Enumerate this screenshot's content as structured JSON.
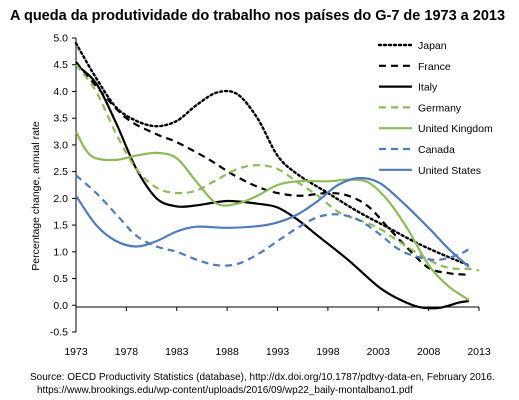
{
  "chart_data": {
    "type": "line",
    "title": "A queda da produtividade do trabalho nos países do G-7 de 1973 a 2013",
    "xlabel": "",
    "ylabel": "Percentage change, annual rate",
    "xlim": [
      1973,
      2013
    ],
    "ylim": [
      -0.5,
      5.0
    ],
    "x_ticks": [
      "1973",
      "1978",
      "1983",
      "1988",
      "1993",
      "1998",
      "2003",
      "2008",
      "2013"
    ],
    "y_ticks": [
      "-0.5",
      "0.0",
      "0.5",
      "1.0",
      "1.5",
      "2.0",
      "2.5",
      "3.0",
      "3.5",
      "4.0",
      "4.5",
      "5.0"
    ],
    "grid": false,
    "legend_position": "top-right",
    "source_lines": [
      "Source: OECD Productivity Statistics (database), http://dx.doi.org/10.1787/pdtvy-data-en, February 2016.",
      "https://www.brookings.edu/wp-content/uploads/2016/09/wp22_baily-montalbano1.pdf"
    ],
    "series": [
      {
        "name": "Japan",
        "color": "#000000",
        "dash": "dotted",
        "points": [
          [
            1973,
            4.9
          ],
          [
            1975,
            4.25
          ],
          [
            1977,
            3.7
          ],
          [
            1979,
            3.45
          ],
          [
            1981,
            3.35
          ],
          [
            1983,
            3.45
          ],
          [
            1985,
            3.75
          ],
          [
            1987,
            3.98
          ],
          [
            1989,
            3.95
          ],
          [
            1991,
            3.5
          ],
          [
            1993,
            2.8
          ],
          [
            1995,
            2.45
          ],
          [
            1998,
            2.1
          ],
          [
            2001,
            1.75
          ],
          [
            2004,
            1.45
          ],
          [
            2007,
            1.15
          ],
          [
            2010,
            0.9
          ],
          [
            2012,
            0.75
          ]
        ]
      },
      {
        "name": "France",
        "color": "#000000",
        "dash": "dashed",
        "points": [
          [
            1973,
            4.55
          ],
          [
            1975,
            4.1
          ],
          [
            1978,
            3.5
          ],
          [
            1981,
            3.2
          ],
          [
            1983,
            3.05
          ],
          [
            1986,
            2.75
          ],
          [
            1989,
            2.4
          ],
          [
            1992,
            2.15
          ],
          [
            1995,
            2.05
          ],
          [
            1998,
            2.1
          ],
          [
            2000,
            2.05
          ],
          [
            2002,
            1.85
          ],
          [
            2004,
            1.45
          ],
          [
            2006,
            1.05
          ],
          [
            2008,
            0.7
          ],
          [
            2010,
            0.6
          ],
          [
            2012,
            0.57
          ]
        ]
      },
      {
        "name": "Italy",
        "color": "#000000",
        "dash": "solid",
        "points": [
          [
            1973,
            4.5
          ],
          [
            1975,
            4.15
          ],
          [
            1977,
            3.4
          ],
          [
            1979,
            2.55
          ],
          [
            1981,
            2.0
          ],
          [
            1983,
            1.85
          ],
          [
            1985,
            1.87
          ],
          [
            1988,
            1.95
          ],
          [
            1991,
            1.9
          ],
          [
            1993,
            1.83
          ],
          [
            1995,
            1.6
          ],
          [
            1997,
            1.3
          ],
          [
            2000,
            0.85
          ],
          [
            2003,
            0.35
          ],
          [
            2005,
            0.12
          ],
          [
            2007,
            -0.03
          ],
          [
            2009,
            -0.05
          ],
          [
            2011,
            0.05
          ],
          [
            2012,
            0.08
          ]
        ]
      },
      {
        "name": "Germany",
        "color": "#8dbb5a",
        "dash": "dashed",
        "points": [
          [
            1973,
            4.5
          ],
          [
            1975,
            4.0
          ],
          [
            1977,
            3.2
          ],
          [
            1979,
            2.55
          ],
          [
            1981,
            2.2
          ],
          [
            1983,
            2.1
          ],
          [
            1985,
            2.15
          ],
          [
            1987,
            2.35
          ],
          [
            1989,
            2.55
          ],
          [
            1991,
            2.62
          ],
          [
            1993,
            2.55
          ],
          [
            1995,
            2.3
          ],
          [
            1997,
            2.05
          ],
          [
            1999,
            1.75
          ],
          [
            2001,
            1.6
          ],
          [
            2003,
            1.45
          ],
          [
            2005,
            1.2
          ],
          [
            2008,
            0.85
          ],
          [
            2010,
            0.7
          ],
          [
            2012,
            0.68
          ],
          [
            2013,
            0.65
          ]
        ]
      },
      {
        "name": "United Kingdom",
        "color": "#8dbb5a",
        "dash": "solid",
        "points": [
          [
            1973,
            3.25
          ],
          [
            1974,
            2.9
          ],
          [
            1975,
            2.75
          ],
          [
            1977,
            2.72
          ],
          [
            1979,
            2.8
          ],
          [
            1981,
            2.85
          ],
          [
            1983,
            2.75
          ],
          [
            1985,
            2.3
          ],
          [
            1987,
            1.9
          ],
          [
            1989,
            1.9
          ],
          [
            1991,
            2.05
          ],
          [
            1993,
            2.25
          ],
          [
            1995,
            2.32
          ],
          [
            1998,
            2.32
          ],
          [
            2000,
            2.35
          ],
          [
            2002,
            2.3
          ],
          [
            2004,
            1.95
          ],
          [
            2006,
            1.4
          ],
          [
            2008,
            0.75
          ],
          [
            2010,
            0.35
          ],
          [
            2012,
            0.1
          ]
        ]
      },
      {
        "name": "Canada",
        "color": "#4f7bbd",
        "dash": "dashed",
        "points": [
          [
            1973,
            2.43
          ],
          [
            1975,
            2.1
          ],
          [
            1977,
            1.7
          ],
          [
            1979,
            1.3
          ],
          [
            1981,
            1.1
          ],
          [
            1983,
            1.0
          ],
          [
            1985,
            0.85
          ],
          [
            1987,
            0.75
          ],
          [
            1989,
            0.77
          ],
          [
            1991,
            0.95
          ],
          [
            1993,
            1.2
          ],
          [
            1995,
            1.45
          ],
          [
            1997,
            1.65
          ],
          [
            1999,
            1.7
          ],
          [
            2001,
            1.6
          ],
          [
            2003,
            1.35
          ],
          [
            2005,
            1.05
          ],
          [
            2007,
            0.9
          ],
          [
            2009,
            0.85
          ],
          [
            2011,
            0.95
          ],
          [
            2012,
            1.05
          ]
        ]
      },
      {
        "name": "United States",
        "color": "#4f7bbd",
        "dash": "solid",
        "points": [
          [
            1973,
            2.05
          ],
          [
            1975,
            1.5
          ],
          [
            1977,
            1.2
          ],
          [
            1979,
            1.1
          ],
          [
            1981,
            1.2
          ],
          [
            1983,
            1.38
          ],
          [
            1985,
            1.47
          ],
          [
            1988,
            1.45
          ],
          [
            1991,
            1.48
          ],
          [
            1993,
            1.55
          ],
          [
            1995,
            1.7
          ],
          [
            1997,
            1.95
          ],
          [
            1999,
            2.25
          ],
          [
            2001,
            2.38
          ],
          [
            2003,
            2.3
          ],
          [
            2005,
            2.0
          ],
          [
            2008,
            1.45
          ],
          [
            2010,
            1.05
          ],
          [
            2012,
            0.72
          ]
        ]
      }
    ]
  }
}
